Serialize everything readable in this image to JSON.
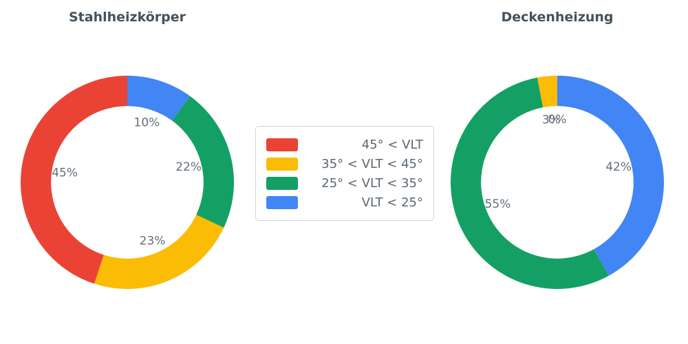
{
  "palette": {
    "red": "#EA4335",
    "yellow": "#FBBC05",
    "green": "#14A064",
    "blue": "#4285F4",
    "title_text": "#44525C",
    "label_text": "#636E78"
  },
  "legend": {
    "items": [
      {
        "label": "45° < VLT",
        "color": "#EA4335"
      },
      {
        "label": "35° < VLT < 45°",
        "color": "#FBBC05"
      },
      {
        "label": "25° < VLT < 35°",
        "color": "#14A064"
      },
      {
        "label": "VLT < 25°",
        "color": "#4285F4"
      }
    ]
  },
  "chart_data": [
    {
      "type": "pie",
      "subtype": "donut",
      "title": "Stahlheizkörper",
      "hole_ratio": 0.715,
      "start_angle": "12-oclock",
      "direction": "clockwise",
      "segments": [
        {
          "legend": "VLT < 25°",
          "value": 10,
          "label": "10%",
          "color": "#4285F4"
        },
        {
          "legend": "25° < VLT < 35°",
          "value": 22,
          "label": "22%",
          "color": "#14A064"
        },
        {
          "legend": "35° < VLT < 45°",
          "value": 23,
          "label": "23%",
          "color": "#FBBC05"
        },
        {
          "legend": "45° < VLT",
          "value": 45,
          "label": "45%",
          "color": "#EA4335"
        }
      ]
    },
    {
      "type": "pie",
      "subtype": "donut",
      "title": "Deckenheizung",
      "hole_ratio": 0.715,
      "start_angle": "12-oclock",
      "direction": "clockwise",
      "segments": [
        {
          "legend": "VLT < 25°",
          "value": 42,
          "label": "42%",
          "color": "#4285F4"
        },
        {
          "legend": "25° < VLT < 35°",
          "value": 55,
          "label": "55%",
          "color": "#14A064"
        },
        {
          "legend": "35° < VLT < 45°",
          "value": 3,
          "label": "3%",
          "color": "#FBBC05"
        },
        {
          "legend": "45° < VLT",
          "value": 0,
          "label": "0%",
          "color": "#EA4335"
        }
      ]
    }
  ]
}
